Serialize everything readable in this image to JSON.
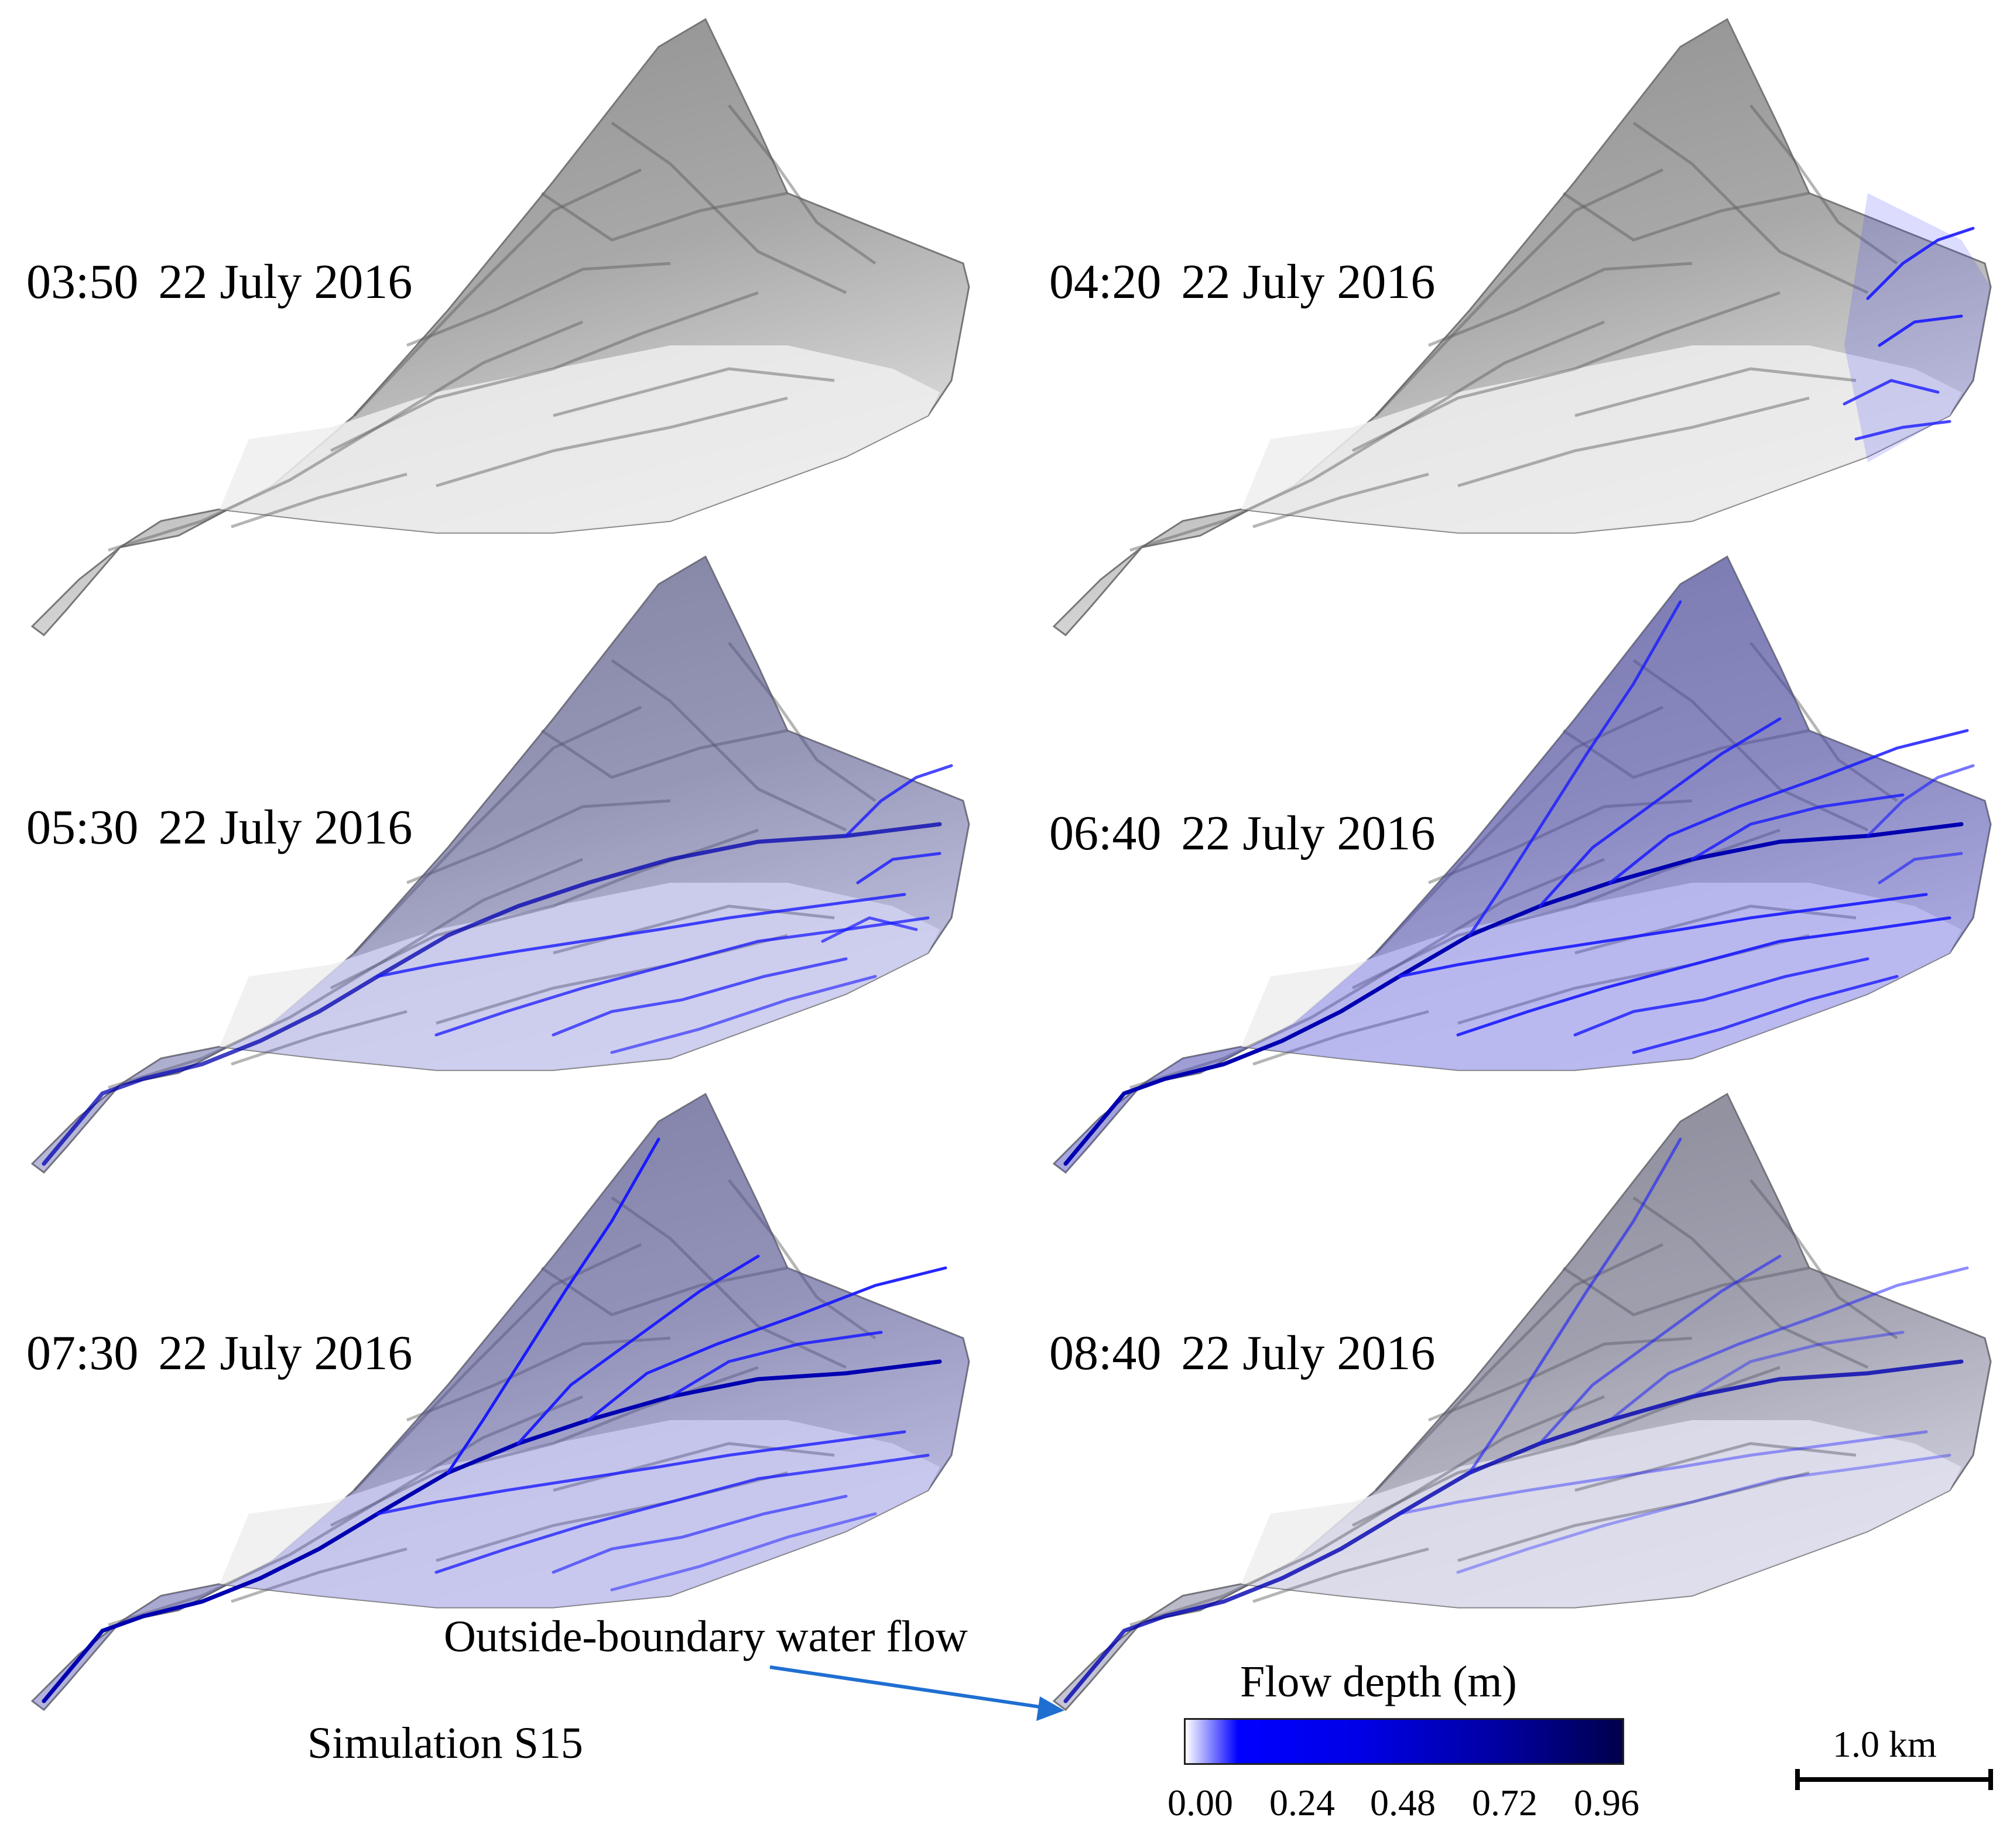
{
  "panels": [
    {
      "time": "03:50",
      "date": "22 July 2016",
      "flow_stage": 0
    },
    {
      "time": "04:20",
      "date": "22 July 2016",
      "flow_stage": 1
    },
    {
      "time": "05:30",
      "date": "22 July 2016",
      "flow_stage": 2
    },
    {
      "time": "06:40",
      "date": "22 July 2016",
      "flow_stage": 3
    },
    {
      "time": "07:30",
      "date": "22 July 2016",
      "flow_stage": 4
    },
    {
      "time": "08:40",
      "date": "22 July 2016",
      "flow_stage": 5
    }
  ],
  "annotation": {
    "text": "Outside-boundary water flow",
    "arrow_color": "#1f6fd1"
  },
  "simulation_label": "Simulation S15",
  "legend": {
    "title": "Flow depth (m)",
    "ticks": [
      "0.00",
      "0.24",
      "0.48",
      "0.72",
      "0.96"
    ],
    "color_low": "#ffffff",
    "color_high": "#00004a"
  },
  "scale_bar": {
    "label": "1.0 km"
  },
  "colors": {
    "terrain_light": "#e6e6e6",
    "terrain_dark": "#8a8a8a",
    "water": "#1a1aff"
  }
}
